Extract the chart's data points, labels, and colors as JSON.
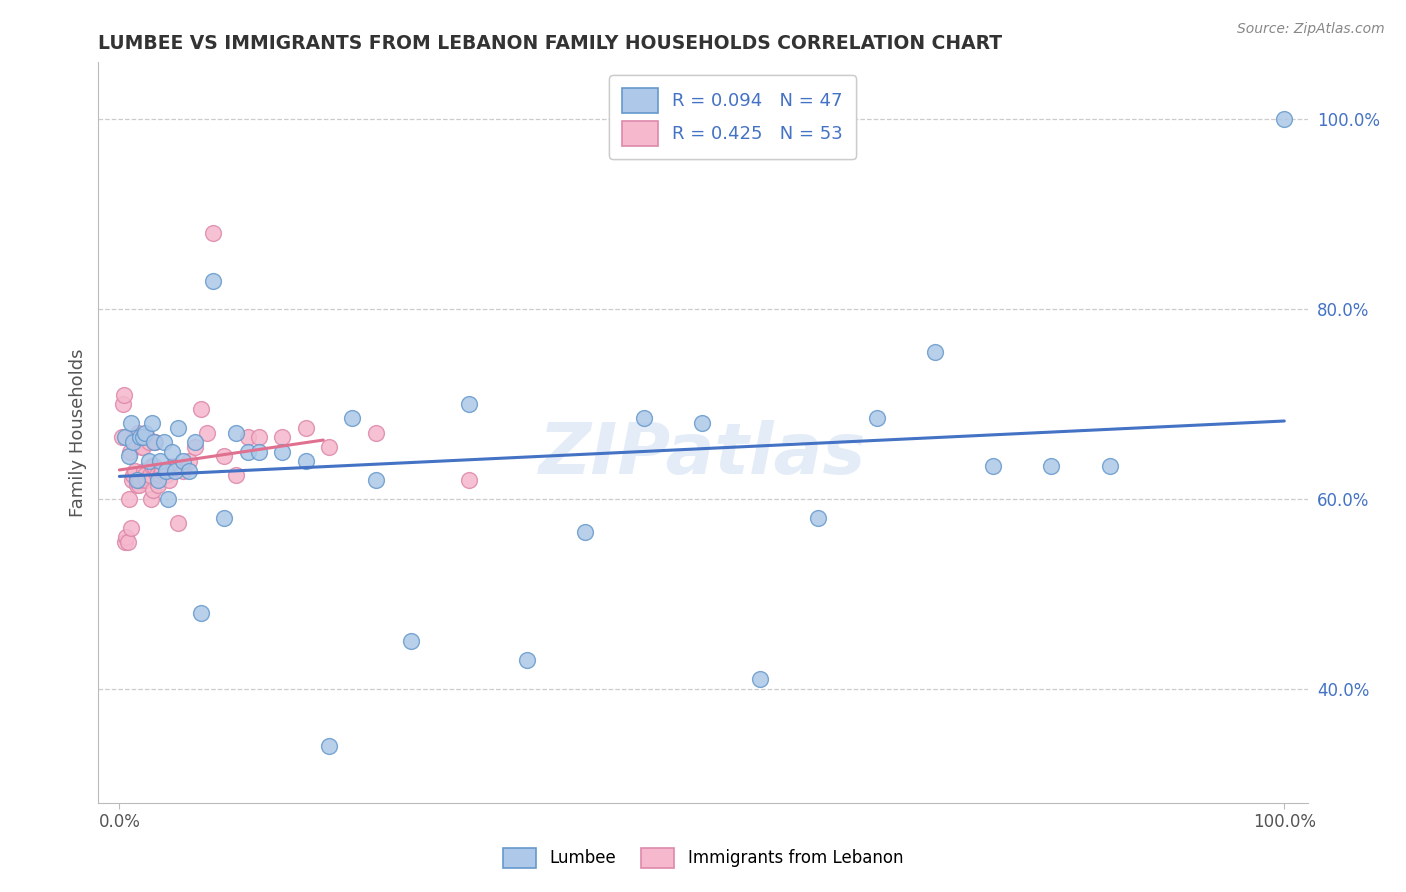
{
  "title": "LUMBEE VS IMMIGRANTS FROM LEBANON FAMILY HOUSEHOLDS CORRELATION CHART",
  "source": "Source: ZipAtlas.com",
  "ylabel": "Family Households",
  "legend_r1": "R = 0.094",
  "legend_n1": "N = 47",
  "legend_r2": "R = 0.425",
  "legend_n2": "N = 53",
  "watermark": "ZIPatlas",
  "lumbee_color": "#adc8e8",
  "lumbee_edge_color": "#6699cc",
  "lumbee_line_color": "#4472c4",
  "lebanon_color": "#f5b8cc",
  "lebanon_edge_color": "#dd88aa",
  "lebanon_line_color": "#e07090",
  "lumbee_x": [
    0.005,
    0.008,
    0.01,
    0.012,
    0.015,
    0.018,
    0.02,
    0.022,
    0.025,
    0.028,
    0.03,
    0.033,
    0.035,
    0.038,
    0.04,
    0.042,
    0.045,
    0.048,
    0.05,
    0.055,
    0.06,
    0.065,
    0.07,
    0.08,
    0.09,
    0.1,
    0.11,
    0.12,
    0.14,
    0.16,
    0.18,
    0.2,
    0.22,
    0.25,
    0.3,
    0.35,
    0.4,
    0.45,
    0.5,
    0.55,
    0.6,
    0.65,
    0.7,
    0.75,
    0.8,
    0.85,
    1.0
  ],
  "lumbee_y": [
    0.665,
    0.645,
    0.68,
    0.66,
    0.62,
    0.665,
    0.665,
    0.67,
    0.64,
    0.68,
    0.66,
    0.62,
    0.64,
    0.66,
    0.63,
    0.6,
    0.65,
    0.63,
    0.675,
    0.64,
    0.63,
    0.66,
    0.48,
    0.83,
    0.58,
    0.67,
    0.65,
    0.65,
    0.65,
    0.64,
    0.34,
    0.685,
    0.62,
    0.45,
    0.7,
    0.43,
    0.565,
    0.685,
    0.68,
    0.41,
    0.58,
    0.685,
    0.755,
    0.635,
    0.635,
    0.635,
    1.0
  ],
  "lebanon_x": [
    0.002,
    0.003,
    0.004,
    0.005,
    0.006,
    0.007,
    0.008,
    0.009,
    0.01,
    0.011,
    0.012,
    0.013,
    0.014,
    0.015,
    0.016,
    0.017,
    0.018,
    0.019,
    0.02,
    0.021,
    0.022,
    0.023,
    0.024,
    0.025,
    0.026,
    0.027,
    0.028,
    0.029,
    0.03,
    0.031,
    0.032,
    0.033,
    0.035,
    0.037,
    0.04,
    0.043,
    0.046,
    0.05,
    0.055,
    0.06,
    0.065,
    0.07,
    0.075,
    0.08,
    0.09,
    0.1,
    0.11,
    0.12,
    0.14,
    0.16,
    0.18,
    0.22,
    0.3
  ],
  "lebanon_y": [
    0.665,
    0.7,
    0.71,
    0.555,
    0.56,
    0.555,
    0.6,
    0.65,
    0.57,
    0.62,
    0.625,
    0.63,
    0.66,
    0.615,
    0.67,
    0.615,
    0.62,
    0.655,
    0.655,
    0.63,
    0.625,
    0.62,
    0.665,
    0.66,
    0.625,
    0.6,
    0.635,
    0.61,
    0.635,
    0.66,
    0.625,
    0.615,
    0.625,
    0.63,
    0.625,
    0.62,
    0.635,
    0.575,
    0.63,
    0.64,
    0.655,
    0.695,
    0.67,
    0.88,
    0.645,
    0.625,
    0.665,
    0.665,
    0.665,
    0.675,
    0.655,
    0.67,
    0.62
  ],
  "xmin": 0.0,
  "xmax": 1.0,
  "ymin": 0.28,
  "ymax": 1.06,
  "ytick_vals": [
    0.4,
    0.6,
    0.8,
    1.0
  ],
  "ytick_labels": [
    "40.0%",
    "60.0%",
    "80.0%",
    "100.0%"
  ],
  "xtick_vals": [
    0.0,
    1.0
  ],
  "xtick_labels": [
    "0.0%",
    "100.0%"
  ]
}
